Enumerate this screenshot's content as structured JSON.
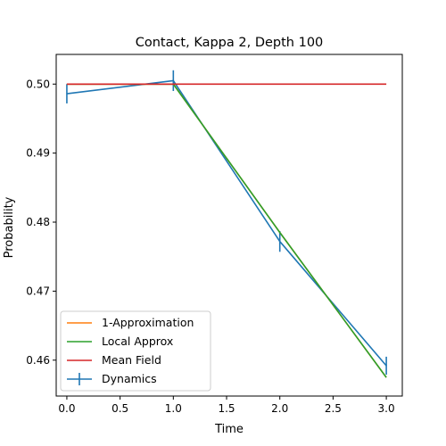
{
  "chart_data": {
    "type": "line",
    "title": "Contact, Kappa 2, Depth 100",
    "xlabel": "Time",
    "ylabel": "Probability",
    "xlim": [
      -0.1,
      3.15
    ],
    "ylim": [
      0.4548,
      0.5043
    ],
    "xticks": [
      0.0,
      0.5,
      1.0,
      1.5,
      2.0,
      2.5,
      3.0
    ],
    "xtick_labels": [
      "0.0",
      "0.5",
      "1.0",
      "1.5",
      "2.0",
      "2.5",
      "3.0"
    ],
    "yticks": [
      0.46,
      0.47,
      0.48,
      0.49,
      0.5
    ],
    "ytick_labels": [
      "0.46",
      "0.47",
      "0.48",
      "0.49",
      "0.50"
    ],
    "legend_position": "lower-left",
    "series": [
      {
        "name": "1-Approximation",
        "color": "#ff7f0e",
        "x": [
          0,
          1,
          2,
          3
        ],
        "y": [
          0.5,
          0.5,
          0.4785,
          0.4575
        ]
      },
      {
        "name": "Local Approx",
        "color": "#2ca02c",
        "x": [
          0,
          1,
          2,
          3
        ],
        "y": [
          0.5,
          0.5,
          0.4785,
          0.4575
        ]
      },
      {
        "name": "Mean Field",
        "color": "#d62728",
        "x": [
          0,
          1,
          2,
          3
        ],
        "y": [
          0.5,
          0.5,
          0.5,
          0.5
        ]
      },
      {
        "name": "Dynamics",
        "color": "#1f77b4",
        "x": [
          0,
          1,
          2,
          3
        ],
        "y": [
          0.4986,
          0.5005,
          0.4772,
          0.4592
        ],
        "yerr": [
          0.0014,
          0.0015,
          0.0015,
          0.0013
        ]
      }
    ]
  }
}
